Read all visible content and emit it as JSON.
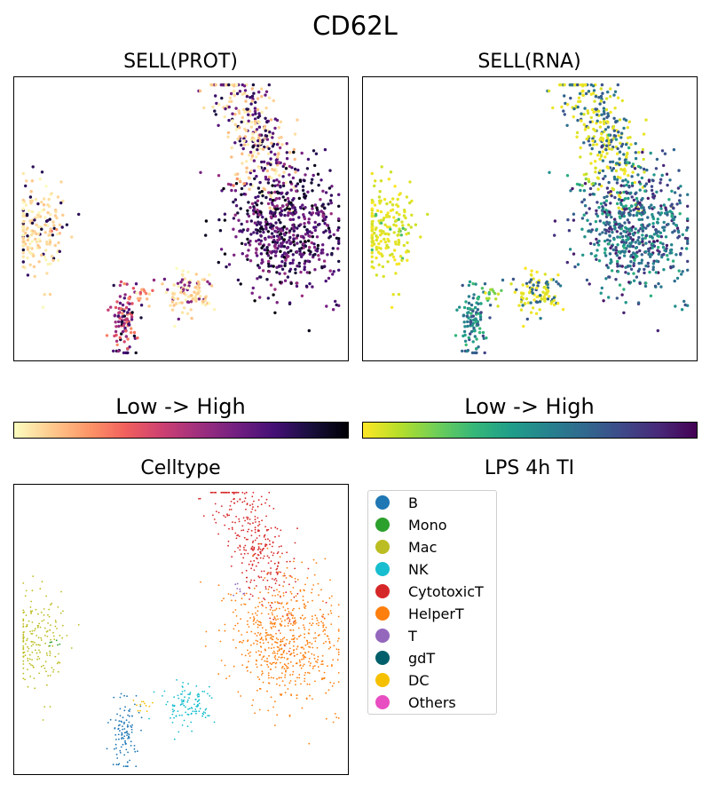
{
  "title": "CD62L",
  "chart_data": [
    {
      "type": "scatter",
      "title": "SELL(PROT)",
      "xlabel": "",
      "ylabel": "",
      "colorbar": {
        "label": "Low  ->  High",
        "colormap": "magma_r",
        "stops": [
          "#fcfdbf",
          "#feca8d",
          "#fd9668",
          "#f1605d",
          "#cd4071",
          "#9e2f7f",
          "#721f81",
          "#440f76",
          "#180f3d",
          "#000004"
        ]
      },
      "axes": {
        "ticks": false,
        "grid": false
      }
    },
    {
      "type": "scatter",
      "title": "SELL(RNA)",
      "xlabel": "",
      "ylabel": "",
      "colorbar": {
        "label": "Low  ->  High",
        "colormap": "viridis_r",
        "stops": [
          "#fde725",
          "#b5de2b",
          "#6ece58",
          "#35b779",
          "#1f9e89",
          "#26828e",
          "#31688e",
          "#3e4989",
          "#482878",
          "#440154"
        ]
      },
      "axes": {
        "ticks": false,
        "grid": false
      }
    },
    {
      "type": "scatter",
      "title": "Celltype",
      "xlabel": "",
      "ylabel": "",
      "axes": {
        "ticks": false,
        "grid": false
      },
      "legend": {
        "title": "LPS 4h TI",
        "placement": "right",
        "entries": [
          {
            "name": "B",
            "color": "#1f77b4"
          },
          {
            "name": "Mono",
            "color": "#2ca02c"
          },
          {
            "name": "Mac",
            "color": "#bcbd22"
          },
          {
            "name": "NK",
            "color": "#17becf"
          },
          {
            "name": "CytotoxicT",
            "color": "#d62728"
          },
          {
            "name": "HelperT",
            "color": "#ff7f0e"
          },
          {
            "name": "T",
            "color": "#9467bd"
          },
          {
            "name": "gdT",
            "color": "#005f6a"
          },
          {
            "name": "DC",
            "color": "#f5c000"
          },
          {
            "name": "Others",
            "color": "#e84ec2"
          }
        ]
      }
    }
  ]
}
